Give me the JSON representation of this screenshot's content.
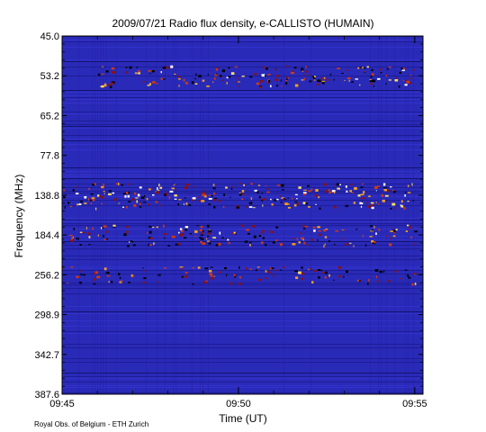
{
  "chart_data": {
    "type": "heatmap",
    "title": "2009/07/21  Radio flux density, e-CALLISTO (HUMAIN)",
    "xlabel": "Time (UT)",
    "ylabel": "Frequency (MHz)",
    "x_ticks": [
      "09:45",
      "09:50",
      "09:55"
    ],
    "x_range": [
      "09:45",
      "09:55:14"
    ],
    "y_ticks": [
      "45.0",
      "53.2",
      "65.2",
      "77.8",
      "138.8",
      "184.4",
      "256.2",
      "298.9",
      "342.7",
      "387.6"
    ],
    "y_order": "top-to-bottom",
    "grid": false,
    "colormap": "blue-black-red-yellow-white",
    "background_color": "#2a2ab8",
    "emission_bands": [
      {
        "frequency_mhz": "53.2",
        "intensity": "moderate",
        "time_span": [
          "09:46",
          "09:55"
        ]
      },
      {
        "frequency_mhz": "138.8",
        "intensity": "strong",
        "time_span": [
          "09:45",
          "09:55"
        ]
      },
      {
        "frequency_mhz": "184.4",
        "intensity": "moderate",
        "time_span": [
          "09:45",
          "09:55"
        ]
      },
      {
        "frequency_mhz": "256.2",
        "intensity": "weak",
        "time_span": [
          "09:45",
          "09:55"
        ]
      }
    ]
  },
  "footer": {
    "credit": "Royal Obs. of Belgium - ETH Zurich"
  }
}
